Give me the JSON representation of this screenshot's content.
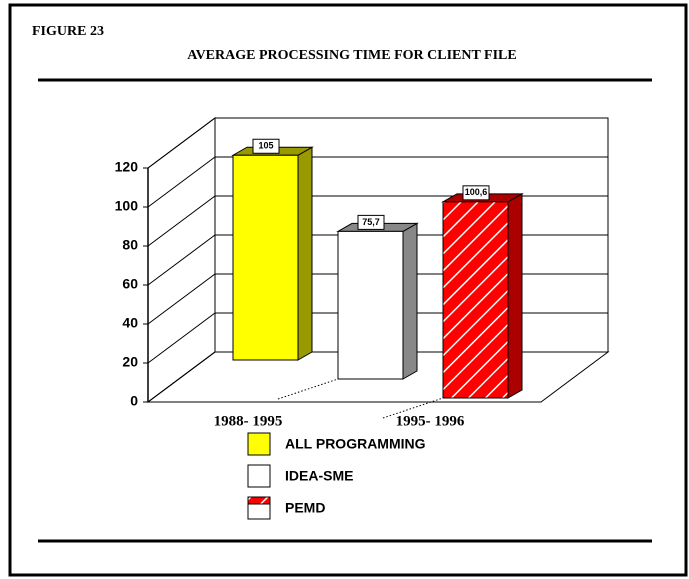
{
  "chart_data": {
    "type": "bar3d",
    "figure_label": "FIGURE 23",
    "title": "AVERAGE PROCESSING TIME FOR CLIENT FILE",
    "categories": [
      "ALL PROGRAMMING",
      "IDEA-SME",
      "PEMD"
    ],
    "values": [
      105,
      75.7,
      100.6
    ],
    "value_labels": [
      "105",
      "75,7",
      "100,6"
    ],
    "colors": [
      "#ffff00",
      "#ffffff",
      "#ff0000"
    ],
    "x_labels": [
      "1988- 1995",
      "1995- 1996"
    ],
    "ylim": [
      0,
      120
    ],
    "yticks": [
      0,
      20,
      40,
      60,
      80,
      100,
      120
    ],
    "grid": true
  }
}
